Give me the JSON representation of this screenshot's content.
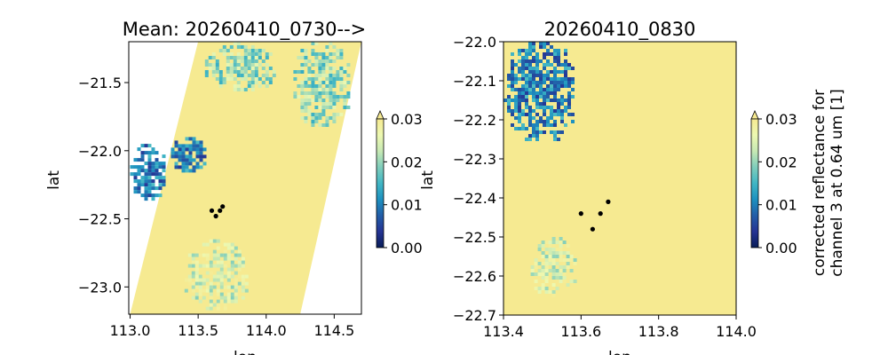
{
  "chart_data": [
    {
      "type": "heatmap",
      "title": "Mean: 20260410_0730-->",
      "xlabel": "lon",
      "ylabel": "lat",
      "xlim": [
        112.99,
        114.7
      ],
      "ylim": [
        -23.2,
        -21.2
      ],
      "xticks": [
        113.0,
        113.5,
        114.0,
        114.5
      ],
      "xtick_labels": [
        "113.0",
        "113.5",
        "114.0",
        "114.5"
      ],
      "yticks": [
        -21.5,
        -22.0,
        -22.5,
        -23.0
      ],
      "ytick_labels": [
        "−21.5",
        "−22.0",
        "−22.5",
        "−23.0"
      ],
      "swath_corners_lonlat": [
        [
          113.5,
          -21.2
        ],
        [
          114.7,
          -21.2
        ],
        [
          114.25,
          -23.2
        ],
        [
          113.0,
          -23.2
        ]
      ],
      "cloud_free_value": 0.03,
      "cloudy_regions": [
        {
          "lon": [
            113.3,
            113.55
          ],
          "lat": [
            -21.9,
            -22.15
          ],
          "value": 0.01
        },
        {
          "lon": [
            113.0,
            113.25
          ],
          "lat": [
            -21.95,
            -22.35
          ],
          "value": 0.01
        },
        {
          "lon": [
            113.55,
            114.05
          ],
          "lat": [
            -21.2,
            -21.55
          ],
          "value": 0.02
        },
        {
          "lon": [
            114.2,
            114.6
          ],
          "lat": [
            -21.2,
            -21.8
          ],
          "value": 0.02
        },
        {
          "lon": [
            113.4,
            113.85
          ],
          "lat": [
            -22.65,
            -23.15
          ],
          "value": 0.025
        }
      ],
      "points": [
        {
          "lon": 113.68,
          "lat": -22.41
        },
        {
          "lon": 113.6,
          "lat": -22.44
        },
        {
          "lon": 113.66,
          "lat": -22.44
        },
        {
          "lon": 113.63,
          "lat": -22.48
        }
      ],
      "colorbar": {
        "label": "",
        "range": [
          0.0,
          0.03
        ],
        "extend": "max",
        "ticks": [
          0.0,
          0.01,
          0.02,
          0.03
        ],
        "tick_labels": [
          "0.00",
          "0.01",
          "0.02",
          "0.03"
        ]
      }
    },
    {
      "type": "heatmap",
      "title": "20260410_0830",
      "xlabel": "lon",
      "ylabel": "lat",
      "xlim": [
        113.4,
        114.0
      ],
      "ylim": [
        -22.7,
        -22.0
      ],
      "xticks": [
        113.4,
        113.6,
        113.8,
        114.0
      ],
      "xtick_labels": [
        "113.4",
        "113.6",
        "113.8",
        "114.0"
      ],
      "yticks": [
        -22.0,
        -22.1,
        -22.2,
        -22.3,
        -22.4,
        -22.5,
        -22.6,
        -22.7
      ],
      "ytick_labels": [
        "−22.0",
        "−22.1",
        "−22.2",
        "−22.3",
        "−22.4",
        "−22.5",
        "−22.6",
        "−22.7"
      ],
      "cloud_free_value": 0.03,
      "cloudy_regions": [
        {
          "lon": [
            113.4,
            113.58
          ],
          "lat": [
            -22.0,
            -22.25
          ],
          "value": 0.01
        },
        {
          "lon": [
            113.47,
            113.58
          ],
          "lat": [
            -22.5,
            -22.65
          ],
          "value": 0.025
        }
      ],
      "points": [
        {
          "lon": 113.67,
          "lat": -22.41
        },
        {
          "lon": 113.6,
          "lat": -22.44
        },
        {
          "lon": 113.65,
          "lat": -22.44
        },
        {
          "lon": 113.63,
          "lat": -22.48
        }
      ],
      "colorbar": {
        "label": "corrected reflectance for\nchannel 3 at 0.64 um [1]",
        "label_line1": "corrected reflectance for",
        "label_line2": "channel 3 at 0.64 um [1]",
        "range": [
          0.0,
          0.03
        ],
        "extend": "max",
        "ticks": [
          0.0,
          0.01,
          0.02,
          0.03
        ],
        "tick_labels": [
          "0.00",
          "0.01",
          "0.02",
          "0.03"
        ]
      }
    }
  ],
  "colors": {
    "cloud_free": "#f6ea91",
    "colormap": [
      "#081d58",
      "#253494",
      "#225ea8",
      "#1d91c0",
      "#41b6c4",
      "#7fcdbb",
      "#c7e9b4",
      "#edf8b1",
      "#f6ea91"
    ],
    "point": "#000000"
  }
}
